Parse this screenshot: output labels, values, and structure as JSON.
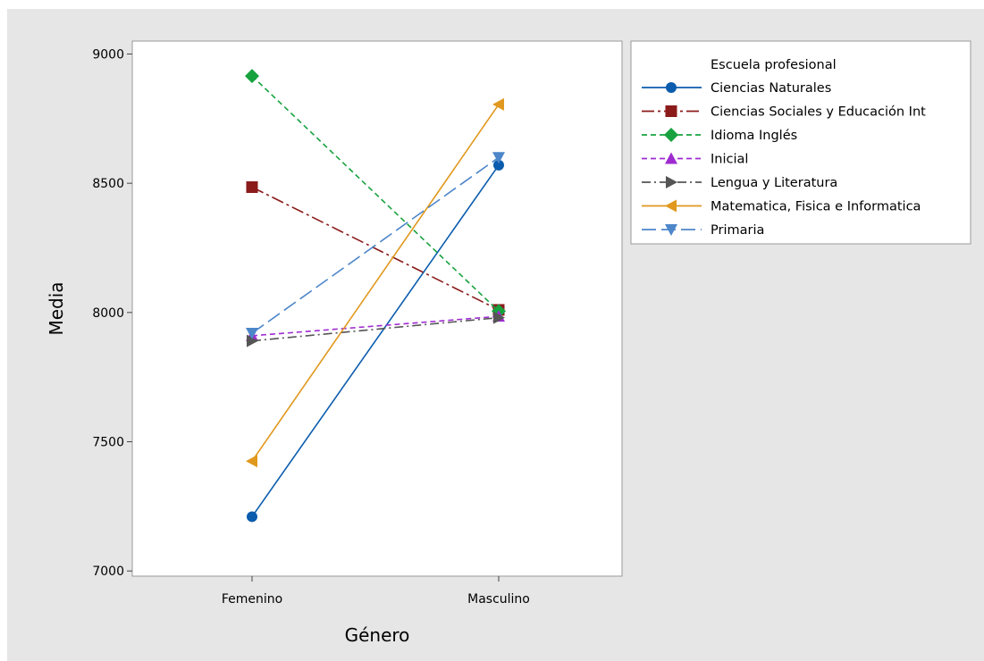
{
  "chart_data": {
    "type": "line",
    "xlabel": "Género",
    "ylabel": "Media",
    "categories": [
      "Femenino",
      "Masculino"
    ],
    "ylim": [
      6980,
      9050
    ],
    "yticks": [
      7000,
      7500,
      8000,
      8500,
      9000
    ],
    "grid": false,
    "legend": {
      "title": "Escuela profesional",
      "placement": "right"
    },
    "series": [
      {
        "name": "Ciencias Naturales",
        "values": [
          7210,
          8570
        ],
        "color": "#0b5cad",
        "dash": "solid",
        "marker": "circle"
      },
      {
        "name": "Ciencias Sociales  y Educación Int",
        "values": [
          8485,
          8010
        ],
        "color": "#8b1a1a",
        "dash": "long-dash-dot",
        "marker": "square"
      },
      {
        "name": "Idioma Inglés",
        "values": [
          8915,
          8005
        ],
        "color": "#17a23f",
        "dash": "dash",
        "marker": "diamond"
      },
      {
        "name": "Inicial",
        "values": [
          7910,
          7985
        ],
        "color": "#9e2bd0",
        "dash": "dash",
        "marker": "triangle-up"
      },
      {
        "name": "Lengua y Literatura",
        "values": [
          7890,
          7980
        ],
        "color": "#555555",
        "dash": "dash-dot",
        "marker": "triangle-right"
      },
      {
        "name": "Matematica, Fisica e Informatica",
        "values": [
          7425,
          8805
        ],
        "color": "#e0981e",
        "dash": "solid",
        "marker": "triangle-left"
      },
      {
        "name": "Primaria",
        "values": [
          7920,
          8600
        ],
        "color": "#4d86c9",
        "dash": "long-dash",
        "marker": "triangle-down"
      }
    ]
  }
}
